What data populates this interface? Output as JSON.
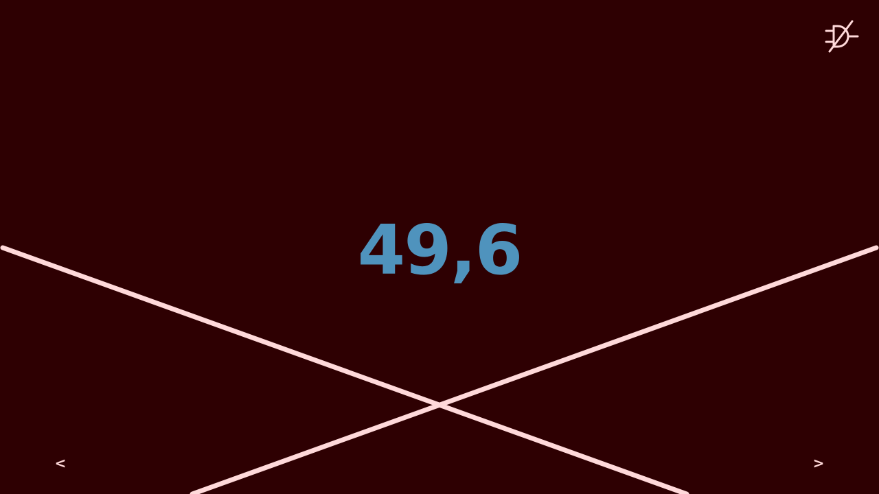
{
  "display": {
    "value": "49,6"
  },
  "status": {
    "icon": "unplugged-icon"
  },
  "nav": {
    "prev_label": "<",
    "next_label": ">"
  },
  "colors": {
    "background": "#2e0002",
    "value": "#4f93bd",
    "lines": "#ffd9da",
    "icon": "#ffd9da",
    "nav": "#ffd9da"
  }
}
